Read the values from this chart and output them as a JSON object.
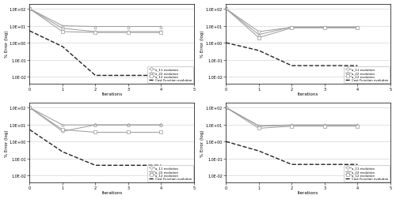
{
  "runs": [
    {
      "a11": [
        100,
        7,
        4.5,
        4.5,
        4.5
      ],
      "a22": [
        100,
        10,
        9.0,
        9.0,
        9.0
      ],
      "a12": [
        100,
        4.5,
        4.0,
        4.0,
        4.0
      ],
      "cost": [
        5.0,
        0.6,
        0.012,
        0.012,
        0.012
      ]
    },
    {
      "a11": [
        100,
        4.5,
        8.0,
        8.0,
        8.0
      ],
      "a22": [
        100,
        3.0,
        8.5,
        8.5,
        8.5
      ],
      "a12": [
        100,
        2.0,
        7.5,
        7.5,
        7.5
      ],
      "cost": [
        1.0,
        0.35,
        0.045,
        0.045,
        0.045
      ]
    },
    {
      "a11": [
        100,
        4.0,
        9.5,
        9.5,
        9.5
      ],
      "a22": [
        100,
        9.5,
        9.5,
        9.5,
        9.5
      ],
      "a12": [
        100,
        5.0,
        3.5,
        3.5,
        3.5
      ],
      "cost": [
        5.0,
        0.25,
        0.04,
        0.04,
        0.04
      ]
    },
    {
      "a11": [
        100,
        8.0,
        9.0,
        9.0,
        9.0
      ],
      "a22": [
        100,
        8.5,
        9.5,
        9.5,
        9.5
      ],
      "a12": [
        100,
        6.0,
        8.0,
        8.0,
        8.0
      ],
      "cost": [
        1.0,
        0.28,
        0.045,
        0.045,
        0.045
      ]
    }
  ],
  "legend_labels": [
    "a_11 evolution",
    "a_22 evolution",
    "a_12 evolution",
    "Cost Function evolution"
  ],
  "xlabel": "Iterations",
  "ylabel": "% Error (log)",
  "iters": [
    0,
    1,
    2,
    3,
    4
  ],
  "ytick_vals": [
    -2,
    -1,
    0,
    1,
    2
  ],
  "ytick_labels": [
    "1.0E-02",
    "1.0E-01",
    "1.0E+00",
    "1.0E+01",
    "1.0E+02"
  ],
  "xtick_vals": [
    0,
    1,
    2,
    3,
    4,
    5
  ],
  "xtick_labels": [
    "0",
    "1",
    "2",
    "3",
    "4",
    "5"
  ],
  "xlim": [
    0,
    5
  ],
  "ylim": [
    -2.4,
    2.3
  ]
}
